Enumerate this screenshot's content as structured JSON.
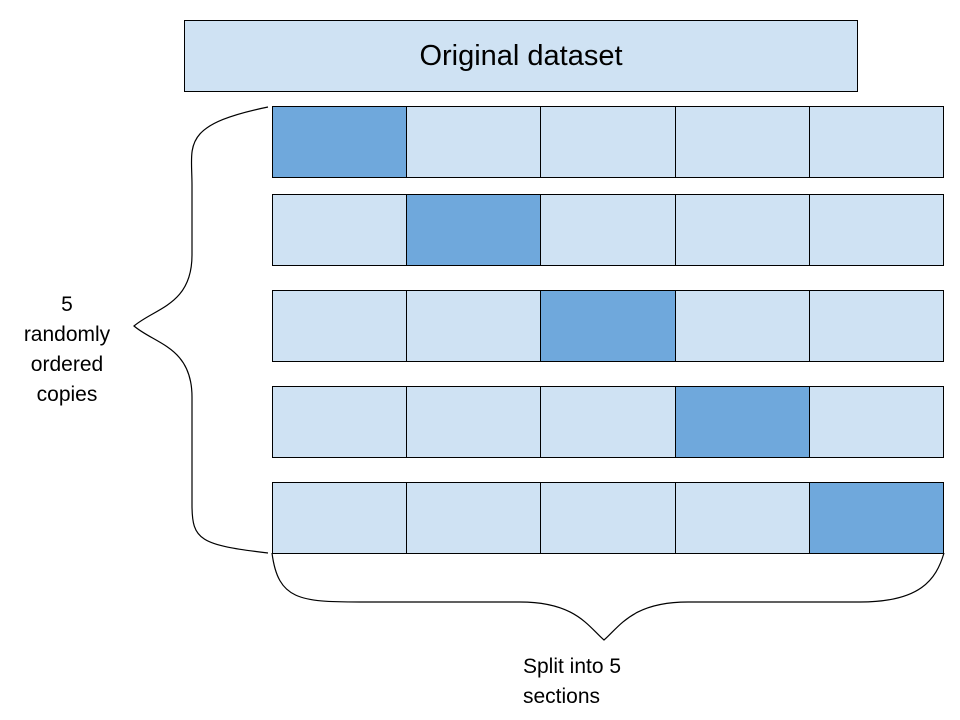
{
  "title": "Original dataset",
  "left_label_lines": [
    "5",
    "randomly",
    "ordered",
    "copies"
  ],
  "bottom_label_lines": [
    "Split into 5",
    "sections"
  ],
  "grid": {
    "rows": 5,
    "columns": 5,
    "highlighted_column_per_row": [
      0,
      1,
      2,
      3,
      4
    ]
  },
  "colors": {
    "light_fill": "#cfe2f3",
    "highlight_fill": "#6fa8dc",
    "stroke": "#000000"
  }
}
